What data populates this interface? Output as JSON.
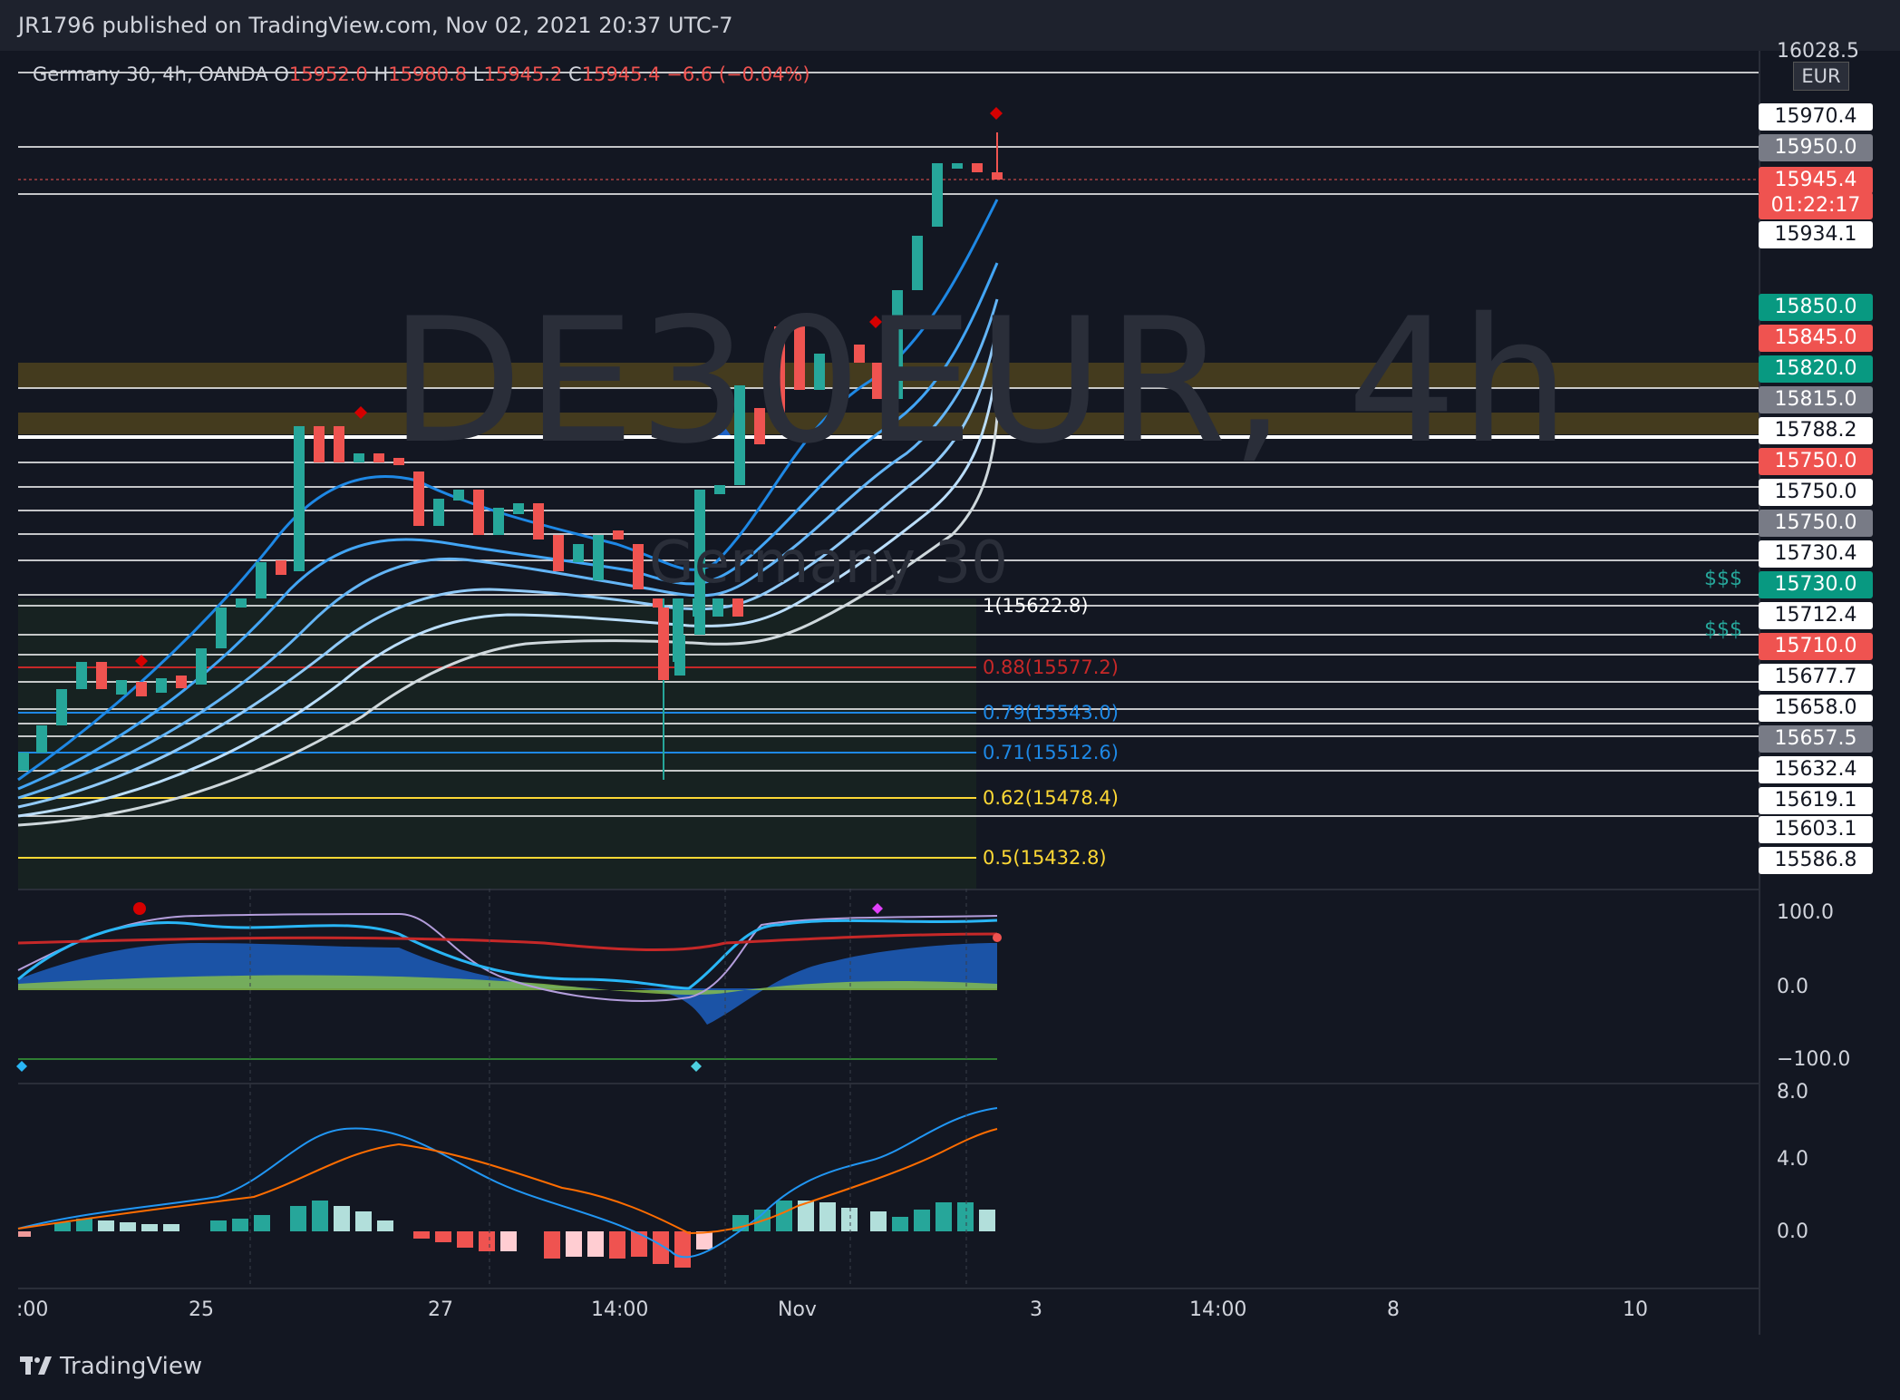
{
  "header": {
    "published_text": "JR1796 published on TradingView.com, Nov 02, 2021 20:37 UTC-7"
  },
  "legend": {
    "symbol": "Germany 30, 4h, OANDA",
    "o_label": "O",
    "o_value": "15952.0",
    "h_label": "H",
    "h_value": "15980.8",
    "l_label": "L",
    "l_value": "15945.2",
    "c_label": "C",
    "c_value": "15945.4",
    "change": "−6.6 (−0.04%)"
  },
  "watermark": {
    "ticker": "DE30EUR, 4h",
    "name": "Germany 30"
  },
  "currency_badge": "EUR",
  "price_axis": {
    "top_partial": "16028.5",
    "labels": [
      {
        "text": "15970.4",
        "style": "white"
      },
      {
        "text": "15950.0",
        "style": "gray"
      },
      {
        "text": "15945.4",
        "style": "red"
      },
      {
        "text": "01:22:17",
        "style": "red"
      },
      {
        "text": "15934.1",
        "style": "white"
      },
      {
        "text": "15850.0",
        "style": "green"
      },
      {
        "text": "15845.0",
        "style": "red"
      },
      {
        "text": "15820.0",
        "style": "green"
      },
      {
        "text": "15815.0",
        "style": "gray"
      },
      {
        "text": "15788.2",
        "style": "white"
      },
      {
        "text": "15750.0",
        "style": "red"
      },
      {
        "text": "15750.0",
        "style": "white"
      },
      {
        "text": "15750.0",
        "style": "gray"
      },
      {
        "text": "15730.4",
        "style": "white"
      },
      {
        "text": "15730.0",
        "style": "green"
      },
      {
        "text": "15712.4",
        "style": "white"
      },
      {
        "text": "15710.0",
        "style": "red"
      },
      {
        "text": "15677.7",
        "style": "white"
      },
      {
        "text": "15658.0",
        "style": "white"
      },
      {
        "text": "15657.5",
        "style": "gray"
      },
      {
        "text": "15632.4",
        "style": "white"
      },
      {
        "text": "15619.1",
        "style": "white"
      },
      {
        "text": "15603.1",
        "style": "white"
      },
      {
        "text": "15586.8",
        "style": "white"
      }
    ]
  },
  "fib_levels": [
    {
      "text": "1(15622.8)",
      "color": "#ffffff"
    },
    {
      "text": "0.88(15577.2)",
      "color": "#c62828"
    },
    {
      "text": "0.79(15543.0)",
      "color": "#1e88e5"
    },
    {
      "text": "0.71(15512.6)",
      "color": "#1e88e5"
    },
    {
      "text": "0.62(15478.4)",
      "color": "#fdd835"
    },
    {
      "text": "0.5(15432.8)",
      "color": "#fdd835"
    }
  ],
  "dollar_marks": [
    "$$$",
    "$$$"
  ],
  "oscillator_axis": [
    "100.0",
    "0.0",
    "−100.0"
  ],
  "macd_axis": [
    "8.0",
    "4.0",
    "0.0"
  ],
  "time_axis": [
    ":00",
    "25",
    "27",
    "14:00",
    "Nov",
    "3",
    "14:00",
    "8",
    "10"
  ],
  "footer": {
    "brand": "TradingView"
  },
  "colors": {
    "up": "#26a69a",
    "down": "#ef5350",
    "background": "#131722",
    "panel": "#1e222d"
  }
}
